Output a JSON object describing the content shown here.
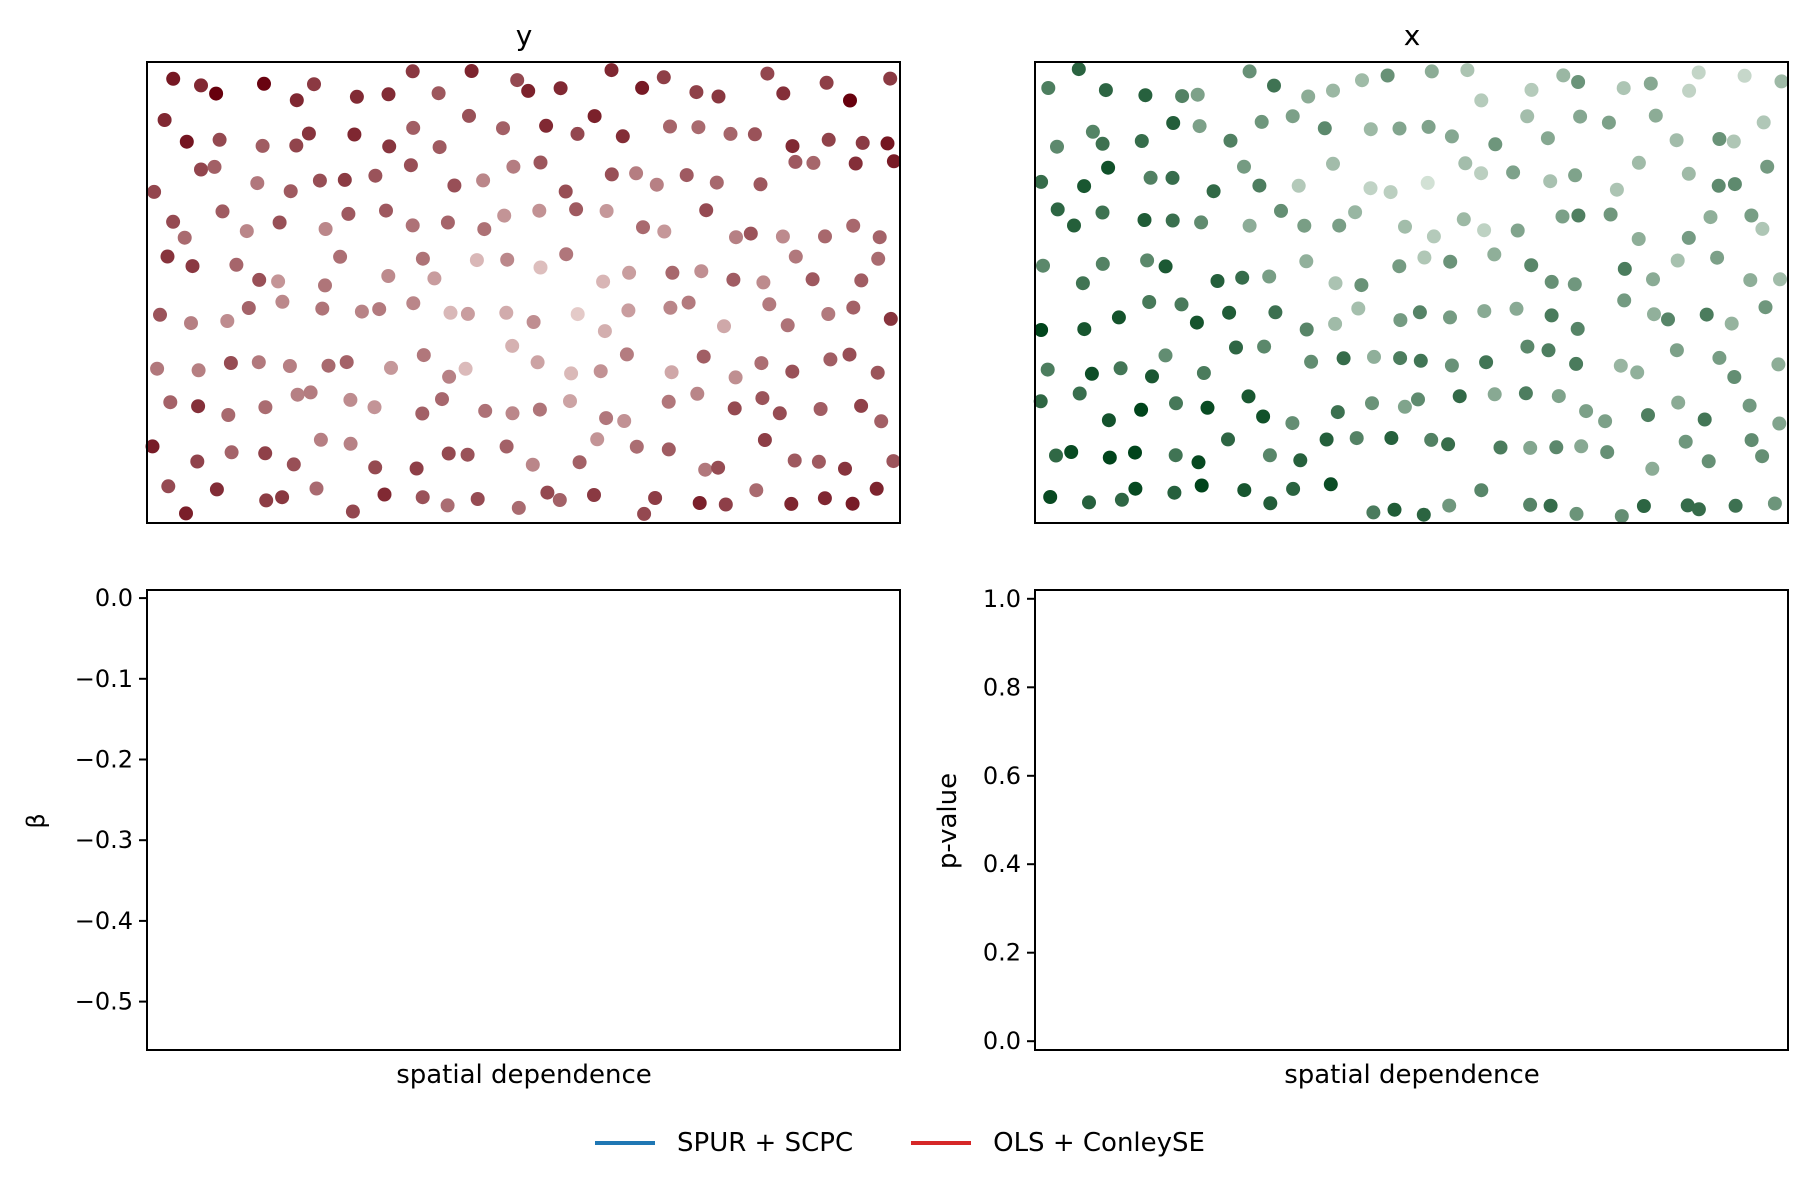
{
  "colors": {
    "series_1": "#1f77b4",
    "series_2": "#d62728",
    "reds_light": "#fff5f0",
    "reds_dark": "#67000d",
    "greens_light": "#f7fcf5",
    "greens_dark": "#00441b"
  },
  "chart_data": [
    {
      "type": "scatter",
      "title": "y",
      "xlabel": "",
      "ylabel": "",
      "colormap": "Reds",
      "xlim": [
        0,
        1
      ],
      "ylim": [
        0,
        1
      ],
      "show_ticks": false,
      "note": "synthetic spatial field; points colored by value in [0,1]",
      "points_source": "generated_grid_jittered",
      "point_count": 240
    },
    {
      "type": "scatter",
      "title": "x",
      "xlabel": "",
      "ylabel": "",
      "colormap": "Greens",
      "xlim": [
        0,
        1
      ],
      "ylim": [
        0,
        1
      ],
      "show_ticks": false,
      "note": "synthetic spatial field; points colored by value in [0,1]",
      "points_source": "generated_grid_jittered",
      "point_count": 240
    },
    {
      "type": "line",
      "title": "",
      "xlabel": "spatial dependence",
      "ylabel": "β",
      "ylim": [
        -0.56,
        0.01
      ],
      "yticks": [
        0.0,
        -0.1,
        -0.2,
        -0.3,
        -0.4,
        -0.5
      ],
      "ytick_labels": [
        "0.0",
        "−0.1",
        "−0.2",
        "−0.3",
        "−0.4",
        "−0.5"
      ],
      "series": [
        {
          "name": "SPUR + SCPC",
          "values": []
        },
        {
          "name": "OLS + ConleySE",
          "values": []
        }
      ]
    },
    {
      "type": "line",
      "title": "",
      "xlabel": "spatial dependence",
      "ylabel": "p-value",
      "ylim": [
        -0.02,
        1.02
      ],
      "yticks": [
        0.0,
        0.2,
        0.4,
        0.6,
        0.8,
        1.0
      ],
      "ytick_labels": [
        "0.0",
        "0.2",
        "0.4",
        "0.6",
        "0.8",
        "1.0"
      ],
      "series": [
        {
          "name": "SPUR + SCPC",
          "values": []
        },
        {
          "name": "OLS + ConleySE",
          "values": []
        }
      ]
    }
  ],
  "legend": [
    {
      "label": "SPUR + SCPC",
      "color": "#1f77b4"
    },
    {
      "label": "OLS + ConleySE",
      "color": "#d62728"
    }
  ]
}
